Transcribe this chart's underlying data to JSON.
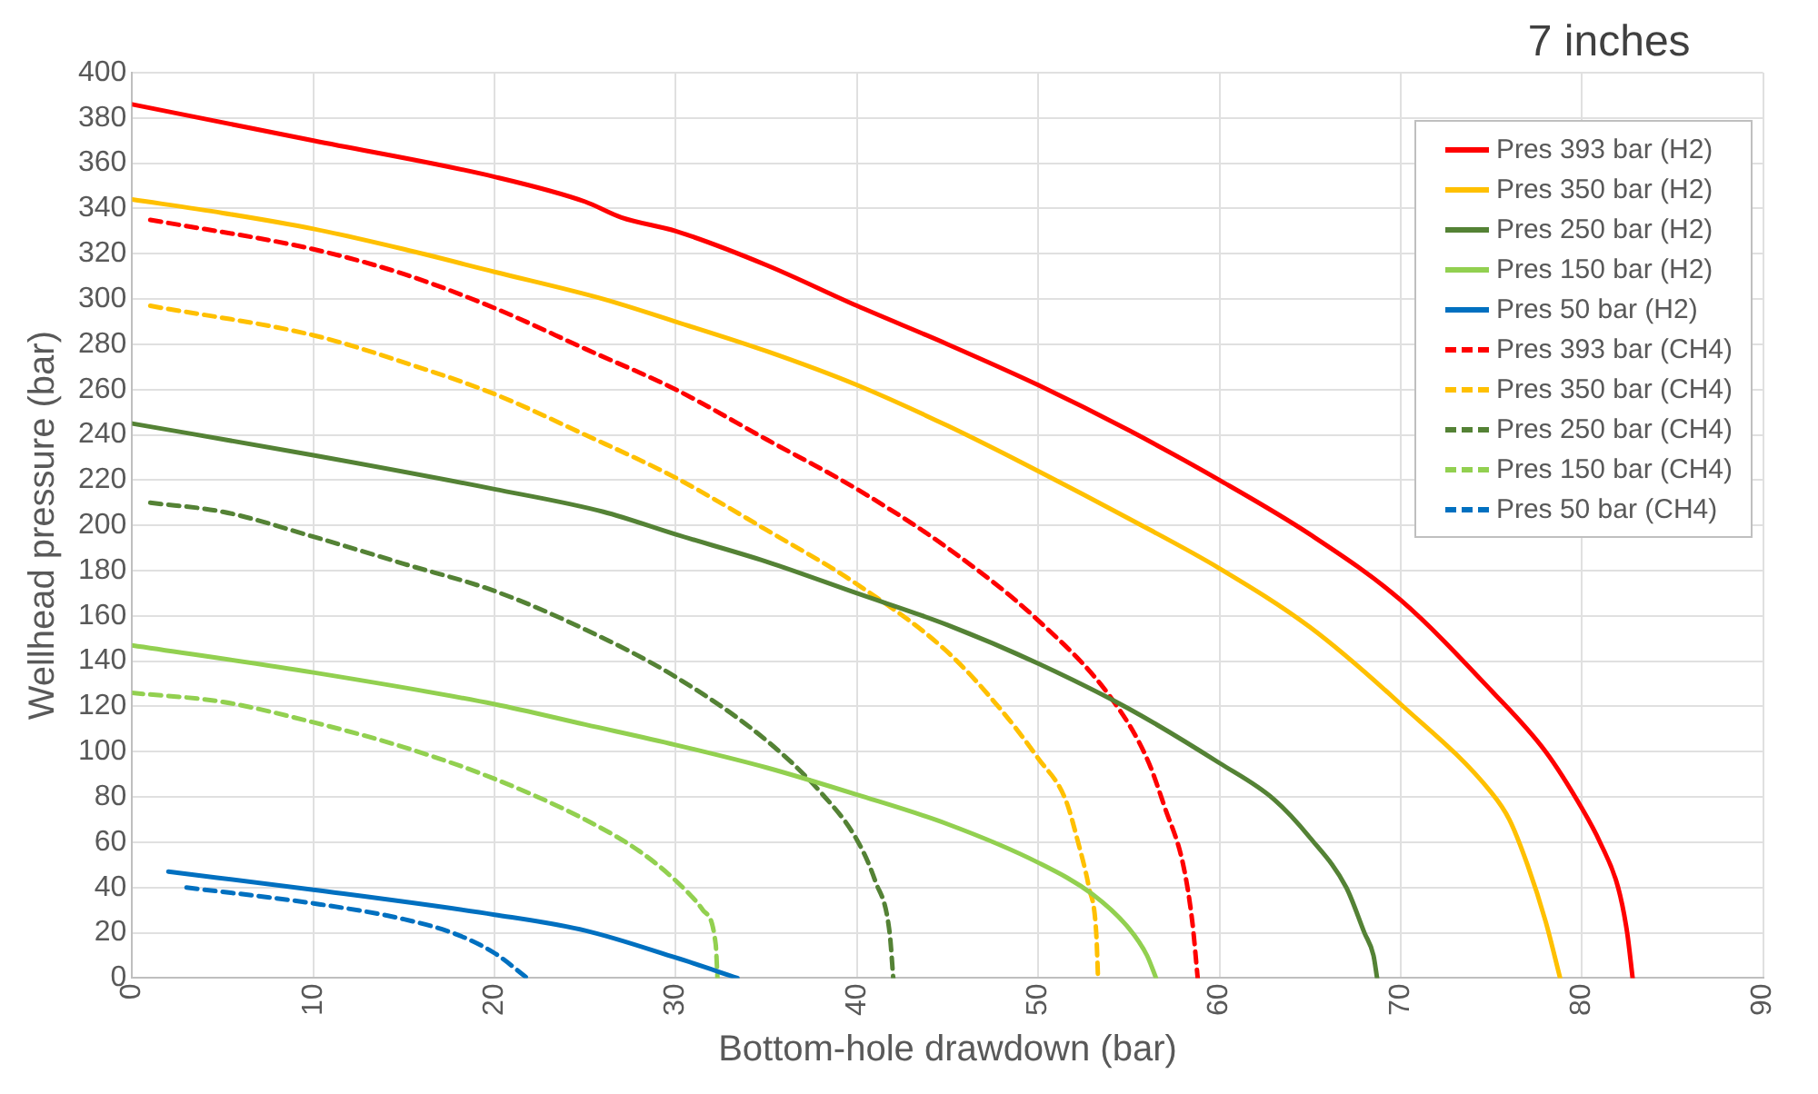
{
  "chart_data": {
    "type": "line",
    "title": "7 inches",
    "xlabel": "Bottom-hole drawdown (bar)",
    "ylabel": "Wellhead pressure (bar)",
    "xlim": [
      0,
      90
    ],
    "xticks": [
      0,
      10,
      20,
      30,
      40,
      50,
      60,
      70,
      80,
      90
    ],
    "ylim": [
      0,
      400
    ],
    "yticks": [
      0,
      20,
      40,
      60,
      80,
      100,
      120,
      140,
      160,
      180,
      200,
      220,
      240,
      260,
      280,
      300,
      320,
      340,
      360,
      380,
      400
    ],
    "grid": true,
    "legend": "top right",
    "marker": "none",
    "series": [
      {
        "name": "Pres 393 bar (H2)",
        "color": "#ff0000",
        "line_style": "solid",
        "x": [
          0,
          10,
          20,
          25,
          27,
          30,
          35,
          40,
          45,
          50,
          55,
          60,
          65,
          70,
          75,
          78,
          80,
          81,
          82,
          82.5,
          82.8
        ],
        "values": [
          386,
          370,
          354,
          343,
          336,
          330,
          315,
          297,
          280,
          262,
          242,
          220,
          196,
          167,
          127,
          100,
          75,
          60,
          40,
          20,
          0
        ]
      },
      {
        "name": "Pres 350 bar (H2)",
        "color": "#ffc000",
        "line_style": "solid",
        "x": [
          0,
          5,
          10,
          15,
          20,
          26,
          30,
          35,
          40,
          45,
          50,
          55,
          60,
          65,
          70,
          75,
          76,
          77,
          78,
          78.8
        ],
        "values": [
          344,
          338,
          331,
          322,
          312,
          300,
          290,
          277,
          262,
          244,
          224,
          203,
          181,
          155,
          121,
          82,
          70,
          50,
          25,
          0
        ]
      },
      {
        "name": "Pres 250 bar (H2)",
        "color": "#548235",
        "line_style": "solid",
        "x": [
          0,
          10,
          20,
          26,
          30,
          35,
          40,
          45,
          50,
          55,
          60,
          63,
          65,
          67,
          68,
          68.5,
          68.7
        ],
        "values": [
          245,
          231,
          216,
          206,
          196,
          184,
          170,
          156,
          139,
          119,
          95,
          79,
          62,
          40,
          20,
          10,
          0
        ]
      },
      {
        "name": "Pres 150 bar (H2)",
        "color": "#92d050",
        "line_style": "solid",
        "x": [
          0,
          10,
          20,
          25,
          30,
          35,
          40,
          45,
          50,
          53,
          55,
          56,
          56.5
        ],
        "values": [
          147,
          135,
          121,
          112,
          103,
          93,
          81,
          68,
          51,
          37,
          22,
          10,
          0
        ]
      },
      {
        "name": "Pres 50 bar (H2)",
        "color": "#0070c0",
        "line_style": "solid",
        "x": [
          2,
          10,
          20,
          25,
          30,
          33.4
        ],
        "values": [
          47,
          39,
          28,
          21,
          9,
          0
        ]
      },
      {
        "name": "Pres 393 bar (CH4)",
        "color": "#ff0000",
        "line_style": "dashed",
        "x": [
          1,
          10,
          15,
          20,
          25,
          30,
          35,
          40,
          45,
          50,
          54,
          56,
          57,
          58,
          58.5,
          58.8
        ],
        "values": [
          335,
          322,
          311,
          296,
          278,
          260,
          238,
          216,
          190,
          158,
          124,
          97,
          75,
          50,
          25,
          0
        ]
      },
      {
        "name": "Pres 350 bar (CH4)",
        "color": "#ffc000",
        "line_style": "dashed",
        "x": [
          1,
          10,
          15,
          20,
          25,
          30,
          35,
          40,
          45,
          48,
          50,
          51.5,
          52.2,
          52.8,
          53.2,
          53.3
        ],
        "values": [
          297,
          284,
          272,
          258,
          240,
          221,
          198,
          174,
          144,
          118,
          97,
          79,
          60,
          40,
          20,
          0
        ]
      },
      {
        "name": "Pres 250 bar (CH4)",
        "color": "#548235",
        "line_style": "dashed",
        "x": [
          1,
          5,
          10,
          15,
          20,
          25,
          30,
          35,
          38,
          40,
          41,
          41.8,
          42
        ],
        "values": [
          210,
          206,
          195,
          183,
          171,
          154,
          133,
          105,
          82,
          61,
          43,
          20,
          0
        ]
      },
      {
        "name": "Pres 150 bar (CH4)",
        "color": "#92d050",
        "line_style": "dashed",
        "x": [
          0,
          5,
          10,
          15,
          20,
          25,
          28,
          30,
          31.5,
          32.2,
          32.3
        ],
        "values": [
          126,
          122,
          113,
          102,
          88,
          70,
          56,
          43,
          30,
          15,
          0
        ]
      },
      {
        "name": "Pres 50 bar (CH4)",
        "color": "#0070c0",
        "line_style": "dashed",
        "x": [
          3,
          10,
          15,
          18,
          20,
          21.8
        ],
        "values": [
          40,
          33,
          26,
          19,
          11,
          0
        ]
      }
    ]
  }
}
